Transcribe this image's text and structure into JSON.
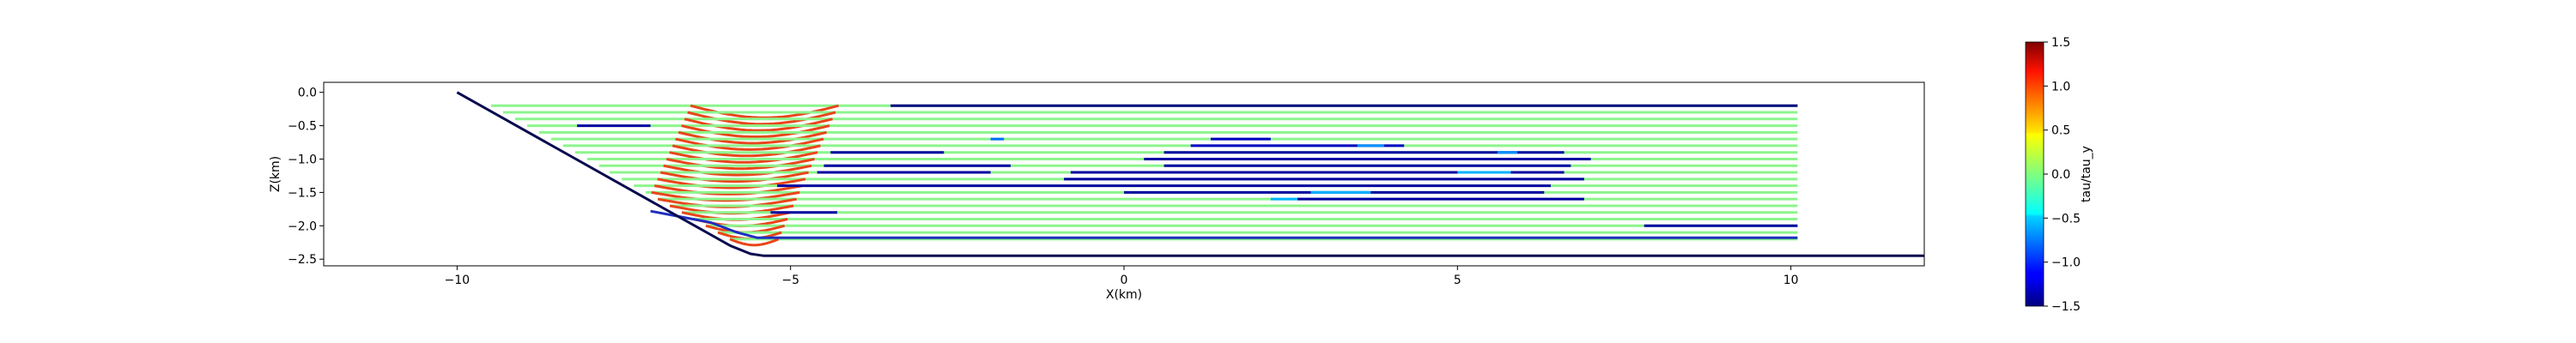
{
  "chart_data": {
    "type": "line",
    "title": "",
    "xlabel": "X(km)",
    "ylabel": "Z(km)",
    "xlim": [
      -12,
      12
    ],
    "ylim": [
      -2.6,
      0.15
    ],
    "xticks": [
      -10,
      -5,
      0,
      5,
      10
    ],
    "xtick_labels": [
      "−10",
      "−5",
      "0",
      "5",
      "10"
    ],
    "yticks": [
      0.0,
      -0.5,
      -1.0,
      -1.5,
      -2.0,
      -2.5
    ],
    "ytick_labels": [
      "0.0",
      "−0.5",
      "−1.0",
      "−1.5",
      "−2.0",
      "−2.5"
    ],
    "grid": false,
    "colorbar": {
      "label": "tau/tau_y",
      "range": [
        -1.5,
        1.5
      ],
      "ticks": [
        1.5,
        1.0,
        0.5,
        0.0,
        -0.5,
        -1.0,
        -1.5
      ],
      "tick_labels": [
        "1.5",
        "1.0",
        "0.5",
        "0.0",
        "−0.5",
        "−1.0",
        "−1.5"
      ],
      "colormap": "jet"
    },
    "boundary": {
      "name": "basal-boundary",
      "x": [
        -10,
        -5.9,
        -5.6,
        -5.4,
        12
      ],
      "z": [
        0.0,
        -2.3,
        -2.42,
        -2.45,
        -2.45
      ],
      "color": "#0a0a50"
    },
    "interface": {
      "name": "upper-interface",
      "x": [
        -7.1,
        -6.2,
        -5.8,
        -5.5,
        10.1
      ],
      "z": [
        -1.78,
        -1.95,
        -2.1,
        -2.18,
        -2.18
      ],
      "color": "#1f2fbf"
    },
    "streamlines": {
      "x_start": -11.1,
      "x_end": 10.1,
      "z_top": -0.2,
      "z_bottom": -2.2,
      "count": 21,
      "base_value": 0.2,
      "base_color": "#8cf58c",
      "yield_zone": {
        "value": 1.0,
        "color": "#e8461a",
        "x_center": -5.3,
        "half_width": 1.2
      },
      "segments": [
        {
          "row": 0,
          "x0": -3.5,
          "x1": 10.1,
          "value": -1.5
        },
        {
          "row": 3,
          "x0": -8.2,
          "x1": -7.1,
          "value": -1.4
        },
        {
          "row": 5,
          "x0": 1.3,
          "x1": 2.2,
          "value": -1.3
        },
        {
          "row": 6,
          "x0": 1.0,
          "x1": 4.2,
          "value": -1.3
        },
        {
          "row": 7,
          "x0": 0.6,
          "x1": 6.6,
          "value": -1.4
        },
        {
          "row": 7,
          "x0": -4.4,
          "x1": -2.7,
          "value": -1.4
        },
        {
          "row": 8,
          "x0": 0.3,
          "x1": 7.0,
          "value": -1.4
        },
        {
          "row": 9,
          "x0": -4.5,
          "x1": -1.7,
          "value": -1.4
        },
        {
          "row": 9,
          "x0": 0.6,
          "x1": 6.7,
          "value": -1.4
        },
        {
          "row": 10,
          "x0": -4.6,
          "x1": -2.0,
          "value": -1.4
        },
        {
          "row": 10,
          "x0": -0.8,
          "x1": 6.6,
          "value": -1.4
        },
        {
          "row": 11,
          "x0": -0.9,
          "x1": 6.9,
          "value": -1.4
        },
        {
          "row": 12,
          "x0": -5.2,
          "x1": 6.4,
          "value": -1.4
        },
        {
          "row": 13,
          "x0": 0.0,
          "x1": 6.3,
          "value": -1.4
        },
        {
          "row": 14,
          "x0": 2.6,
          "x1": 6.9,
          "value": -1.4
        },
        {
          "row": 16,
          "x0": -5.3,
          "x1": -4.3,
          "value": -1.4
        },
        {
          "row": 18,
          "x0": 7.8,
          "x1": 10.1,
          "value": -1.4
        },
        {
          "row": 5,
          "x0": -2.0,
          "x1": -1.8,
          "value": -0.8
        },
        {
          "row": 6,
          "x0": 3.5,
          "x1": 3.9,
          "value": -0.7
        },
        {
          "row": 7,
          "x0": 5.6,
          "x1": 5.9,
          "value": -0.7
        },
        {
          "row": 10,
          "x0": 5.0,
          "x1": 5.8,
          "value": -0.6
        },
        {
          "row": 13,
          "x0": 2.8,
          "x1": 3.7,
          "value": -0.6
        },
        {
          "row": 14,
          "x0": 2.2,
          "x1": 2.6,
          "value": -0.6
        }
      ]
    }
  }
}
